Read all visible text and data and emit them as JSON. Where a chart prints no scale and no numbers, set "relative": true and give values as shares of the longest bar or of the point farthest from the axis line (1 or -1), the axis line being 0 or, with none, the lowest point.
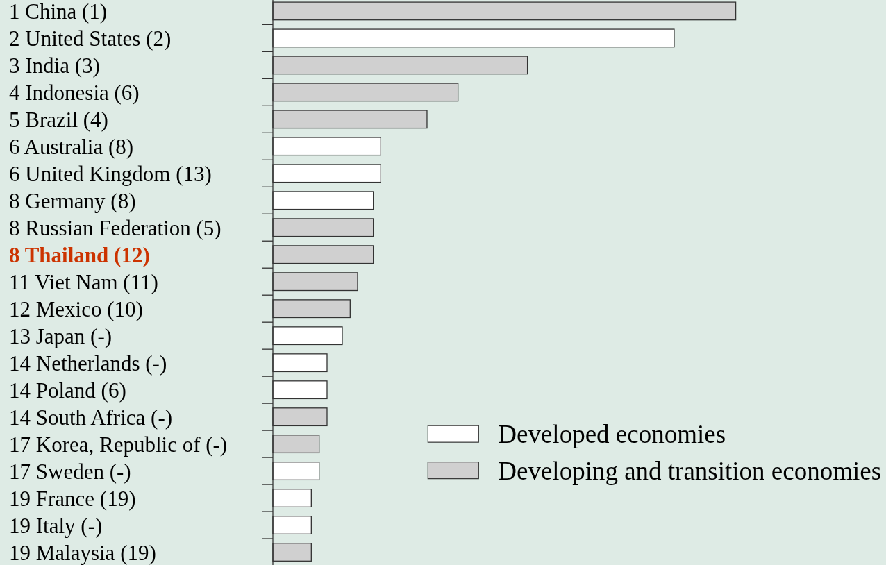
{
  "chart_data": {
    "type": "bar",
    "orientation": "horizontal",
    "stacked": true,
    "relative": true,
    "legend": "bottom right",
    "categories": [
      "1 China (1)",
      "2 United States (2)",
      "3 India (3)",
      "4 Indonesia (6)",
      "5 Brazil (4)",
      "6 Australia (8)",
      "6 United Kingdom (13)",
      "8 Germany (8)",
      "8 Russian Federation (5)",
      "8 Thailand (12)",
      "11 Viet Nam (11)",
      "12 Mexico (10)",
      "13 Japan (-)",
      "14 Netherlands (-)",
      "14 Poland (6)",
      "14 South Africa (-)",
      "17 Korea, Republic of (-)",
      "17 Sweden (-)",
      "19 France (19)",
      "19 Italy (-)",
      "19 Malaysia (19)"
    ],
    "series": [
      {
        "name": "Developed economies",
        "color": "#ffffff",
        "values": [
          null,
          0.867,
          null,
          null,
          null,
          0.233,
          0.233,
          0.217,
          null,
          null,
          null,
          null,
          0.15,
          0.117,
          0.117,
          null,
          null,
          0.1,
          0.083,
          0.083,
          null
        ]
      },
      {
        "name": "Developing and transition economies",
        "color": "#d0d0d0",
        "values": [
          1,
          null,
          0.55,
          0.4,
          0.333,
          null,
          null,
          null,
          0.217,
          0.217,
          0.183,
          0.167,
          null,
          null,
          null,
          0.117,
          0.1,
          null,
          null,
          null,
          0.083
        ]
      }
    ]
  }
}
